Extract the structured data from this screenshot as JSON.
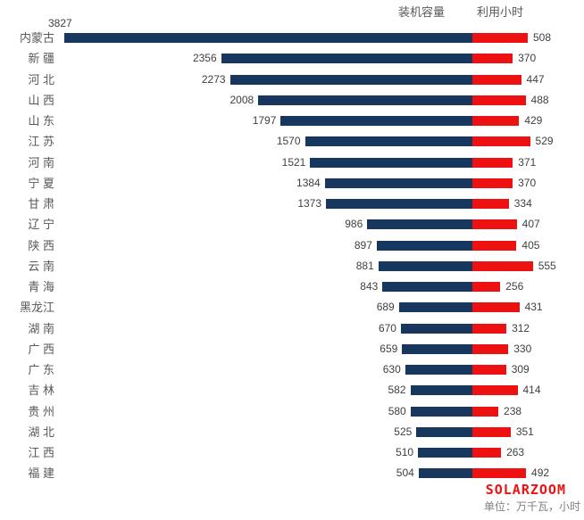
{
  "legend": {
    "capacity": "装机容量",
    "hours": "利用小时"
  },
  "footer": {
    "brand": "SOLARZOOM",
    "unit_note": "单位：万千瓦，小时"
  },
  "colors": {
    "capacity_bar": "#17375E",
    "hours_bar": "#EE1111",
    "category_text": "#595959",
    "value_text": "#3F3F3F",
    "brand_red": "#EE1111",
    "unit_gray": "#7F7F7F",
    "background": "#FFFFFF"
  },
  "chart_data": {
    "type": "bar",
    "subtype": "diverging-horizontal",
    "title": "",
    "legend_position": "top-right",
    "grid": false,
    "unit": "万千瓦，小时",
    "categories": [
      "内蒙古",
      "新疆",
      "河北",
      "山西",
      "山东",
      "江苏",
      "河南",
      "宁夏",
      "甘肃",
      "辽宁",
      "陕西",
      "云南",
      "青海",
      "黑龙江",
      "湖南",
      "广西",
      "广东",
      "吉林",
      "贵州",
      "湖北",
      "江西",
      "福建"
    ],
    "series": [
      {
        "name": "装机容量",
        "direction": "left",
        "color": "#17375E",
        "values": [
          3827,
          2356,
          2273,
          2008,
          1797,
          1570,
          1521,
          1384,
          1373,
          986,
          897,
          881,
          843,
          689,
          670,
          659,
          630,
          582,
          580,
          525,
          510,
          504
        ]
      },
      {
        "name": "利用小时",
        "direction": "right",
        "color": "#EE1111",
        "values": [
          508,
          370,
          447,
          488,
          429,
          529,
          371,
          370,
          334,
          407,
          405,
          555,
          256,
          431,
          312,
          330,
          309,
          414,
          238,
          351,
          263,
          492
        ]
      }
    ]
  }
}
